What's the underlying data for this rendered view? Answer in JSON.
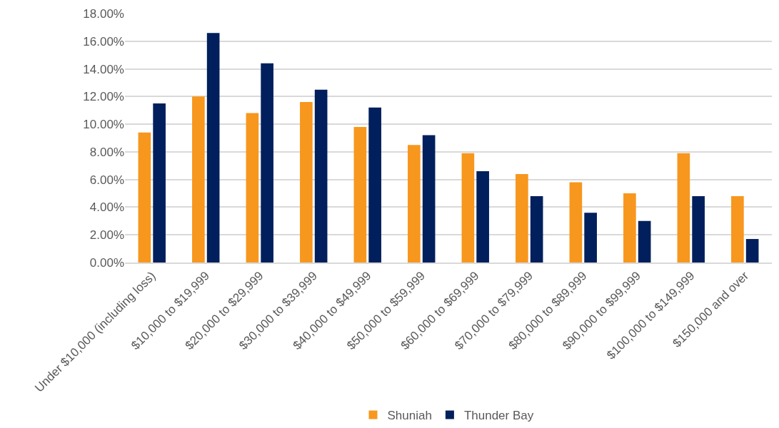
{
  "chart_data": {
    "type": "bar",
    "categories": [
      "Under $10,000 (including loss)",
      "$10,000 to $19,999",
      "$20,000 to $29,999",
      "$30,000 to $39,999",
      "$40,000 to $49,999",
      "$50,000 to $59,999",
      "$60,000 to $69,999",
      "$70,000 to $79,999",
      "$80,000 to $89,999",
      "$90,000 to $99,999",
      "$100,000 to $149,999",
      "$150,000 and over"
    ],
    "series": [
      {
        "name": "Shuniah",
        "color": "#f7971e",
        "values": [
          9.4,
          12.0,
          10.8,
          11.6,
          9.8,
          8.5,
          7.9,
          6.4,
          5.8,
          5.0,
          7.9,
          4.8
        ]
      },
      {
        "name": "Thunder Bay",
        "color": "#001f5c",
        "values": [
          11.5,
          16.6,
          14.4,
          12.5,
          11.2,
          9.2,
          6.6,
          4.8,
          3.6,
          3.0,
          4.8,
          1.7
        ]
      }
    ],
    "ylim": [
      0,
      18
    ],
    "yticks": [
      {
        "value": 0,
        "label": "0.00%"
      },
      {
        "value": 2,
        "label": "2.00%"
      },
      {
        "value": 4,
        "label": "4.00%"
      },
      {
        "value": 6,
        "label": "6.00%"
      },
      {
        "value": 8,
        "label": "8.00%"
      },
      {
        "value": 10,
        "label": "10.00%"
      },
      {
        "value": 12,
        "label": "12.00%"
      },
      {
        "value": 14,
        "label": "14.00%"
      },
      {
        "value": 16,
        "label": "16.00%"
      },
      {
        "value": 18,
        "label": "18.00%"
      }
    ],
    "grid": "y",
    "legend": "bottom"
  }
}
